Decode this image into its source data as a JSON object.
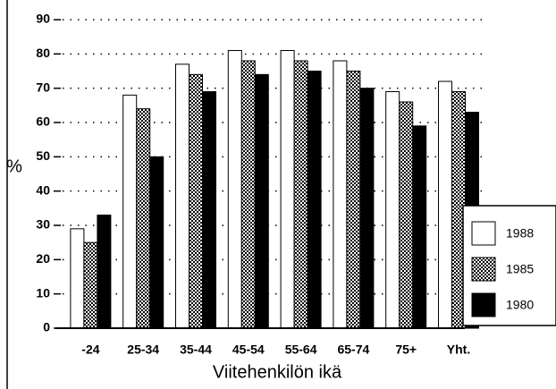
{
  "chart_data": {
    "type": "bar",
    "categories": [
      "-24",
      "25-34",
      "35-44",
      "45-54",
      "55-64",
      "65-74",
      "75+",
      "Yht."
    ],
    "series": [
      {
        "name": "1988",
        "color": "#ffffff",
        "values": [
          29,
          68,
          77,
          81,
          81,
          78,
          69,
          72
        ]
      },
      {
        "name": "1985",
        "color": "#999999",
        "values": [
          25,
          64,
          74,
          78,
          78,
          75,
          66,
          69
        ]
      },
      {
        "name": "1980",
        "color": "#000000",
        "values": [
          33,
          50,
          69,
          74,
          75,
          70,
          59,
          63
        ]
      }
    ],
    "ylabel": "%",
    "xlabel": "Viitehenkilön ikä",
    "ylim": [
      0,
      90
    ],
    "yticks": [
      0,
      10,
      20,
      30,
      40,
      50,
      60,
      70,
      80,
      90
    ],
    "grid": true,
    "legend": "lower right"
  }
}
